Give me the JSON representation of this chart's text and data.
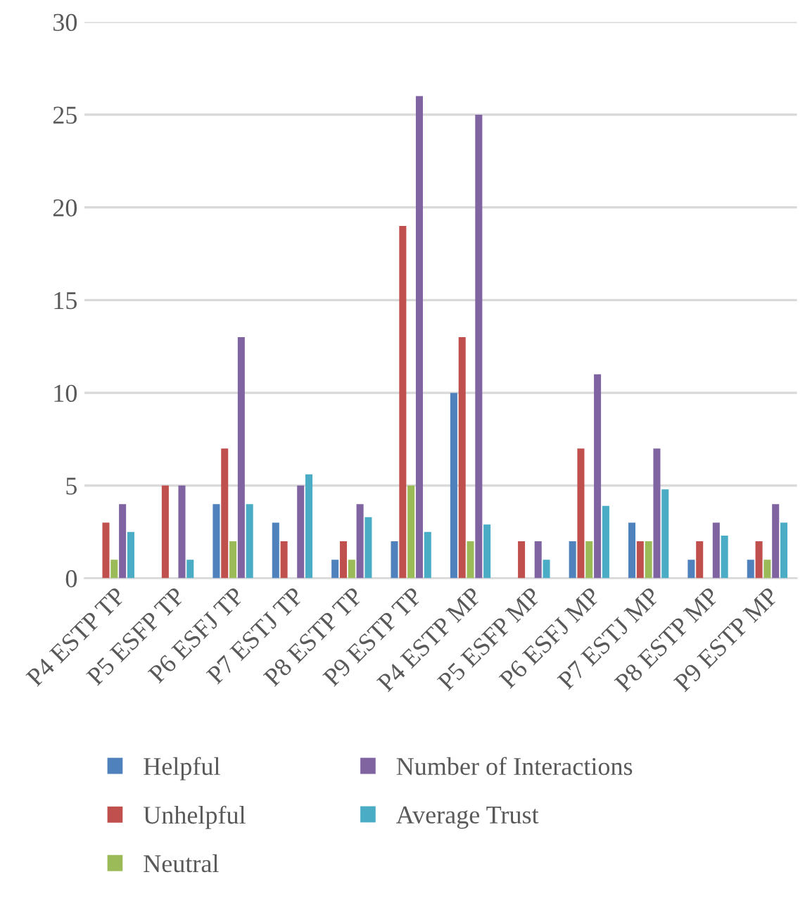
{
  "chart_data": {
    "type": "bar",
    "categories": [
      "P4 ESTP TP",
      "P5 ESFP TP",
      "P6 ESFJ TP",
      "P7 ESTJ TP",
      "P8 ESTP TP",
      "P9 ESTP TP",
      "P4 ESTP MP",
      "P5 ESFP MP",
      "P6 ESFJ MP",
      "P7 ESTJ MP",
      "P8 ESTP MP",
      "P9 ESTP MP"
    ],
    "series": [
      {
        "name": "Helpful",
        "color": "#4f81bd",
        "values": [
          0,
          0,
          4,
          3,
          1,
          2,
          10,
          0,
          2,
          3,
          1,
          1
        ]
      },
      {
        "name": "Unhelpful",
        "color": "#c0504d",
        "values": [
          3,
          5,
          7,
          2,
          2,
          19,
          13,
          2,
          7,
          2,
          2,
          2
        ]
      },
      {
        "name": "Neutral",
        "color": "#9bbb59",
        "values": [
          1,
          0,
          2,
          0,
          1,
          5,
          2,
          0,
          2,
          2,
          0,
          1
        ]
      },
      {
        "name": "Number of Interactions",
        "color": "#8064a2",
        "values": [
          4,
          5,
          13,
          5,
          4,
          26,
          25,
          2,
          11,
          7,
          3,
          4
        ]
      },
      {
        "name": "Average Trust",
        "color": "#4bacc6",
        "values": [
          2.5,
          1,
          4,
          5.6,
          3.3,
          2.5,
          2.9,
          1,
          3.9,
          4.8,
          2.3,
          3
        ]
      }
    ],
    "ylim": [
      0,
      30
    ],
    "yticks": [
      0,
      5,
      10,
      15,
      20,
      25,
      30
    ],
    "grid": "y",
    "legend": "bottom"
  }
}
